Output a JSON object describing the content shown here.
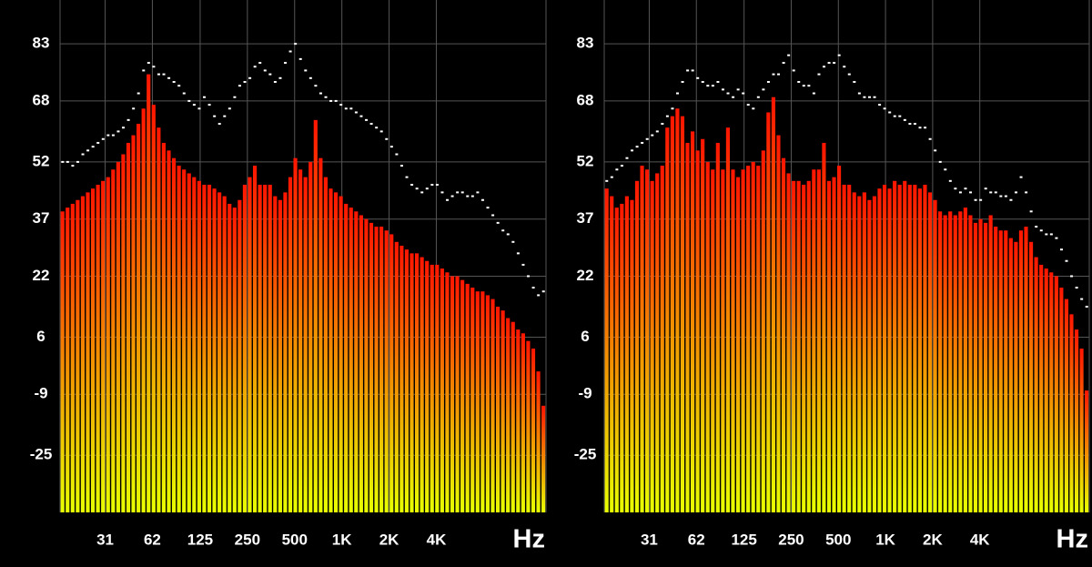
{
  "chart_data": [
    {
      "type": "bar",
      "x_label": "Hz",
      "xscale": "log",
      "xlim": [
        16,
        20000
      ],
      "xticks": [
        31,
        62,
        125,
        250,
        500,
        {
          "value": 1000,
          "label": "1K"
        },
        {
          "value": 2000,
          "label": "2K"
        },
        {
          "value": 4000,
          "label": "4K"
        }
      ],
      "ylim": [
        -40,
        94.5
      ],
      "yticks": [
        83,
        68,
        52,
        37,
        22,
        6,
        -9,
        -25
      ],
      "grid": true,
      "gradient": [
        "#ff1500",
        "#e8ff00"
      ],
      "peak_color": "#ffffff",
      "values": [
        39,
        40,
        41,
        42,
        43,
        44,
        45,
        46,
        47,
        48,
        50,
        52,
        54,
        57,
        59,
        62,
        66,
        75,
        67,
        61,
        57,
        55,
        53,
        51,
        50,
        49,
        48,
        47,
        46,
        46,
        45,
        44,
        43,
        41,
        40,
        42,
        46,
        48,
        51,
        46,
        46,
        46,
        43,
        42,
        44,
        48,
        53,
        50,
        48,
        52,
        63,
        53,
        48,
        45,
        44,
        43,
        41,
        40,
        39,
        38,
        37,
        36,
        35,
        35,
        34,
        33,
        31,
        30,
        29,
        28,
        28,
        27,
        26,
        25,
        25,
        24,
        23,
        22,
        22,
        21,
        20,
        19,
        18,
        18,
        17,
        16,
        14,
        13,
        11,
        10,
        8,
        7,
        5,
        3,
        -3,
        -12
      ],
      "peak_values": [
        52,
        52,
        51,
        52,
        54,
        55,
        56,
        57,
        58,
        59,
        59,
        60,
        61,
        63,
        66,
        70,
        76,
        78,
        77,
        75,
        75,
        74,
        73,
        72,
        70,
        68,
        67,
        66,
        69,
        67,
        64,
        62,
        64,
        66,
        69,
        72,
        73,
        74,
        77,
        78,
        76,
        75,
        73,
        74,
        78,
        81,
        83,
        79,
        76,
        74,
        72,
        70,
        69,
        68,
        68,
        67,
        66,
        66,
        65,
        64,
        63,
        62,
        61,
        60,
        58,
        56,
        54,
        51,
        48,
        46,
        45,
        44,
        45,
        46,
        46,
        44,
        42,
        43,
        44,
        44,
        43,
        43,
        44,
        42,
        40,
        38,
        36,
        34,
        33,
        31,
        28,
        25,
        22,
        19,
        17,
        18
      ]
    },
    {
      "type": "bar",
      "x_label": "Hz",
      "xscale": "log",
      "xlim": [
        16,
        20000
      ],
      "xticks": [
        31,
        62,
        125,
        250,
        500,
        {
          "value": 1000,
          "label": "1K"
        },
        {
          "value": 2000,
          "label": "2K"
        },
        {
          "value": 4000,
          "label": "4K"
        }
      ],
      "ylim": [
        -40,
        94.5
      ],
      "yticks": [
        83,
        68,
        52,
        37,
        22,
        6,
        -9,
        -25
      ],
      "grid": true,
      "gradient": [
        "#ff1500",
        "#e8ff00"
      ],
      "peak_color": "#ffffff",
      "values": [
        45,
        43,
        40,
        41,
        43,
        42,
        47,
        51,
        50,
        47,
        49,
        51,
        61,
        64,
        66,
        64,
        57,
        60,
        55,
        58,
        52,
        50,
        57,
        50,
        61,
        50,
        48,
        50,
        51,
        52,
        51,
        55,
        65,
        69,
        59,
        53,
        49,
        47,
        47,
        46,
        47,
        50,
        50,
        57,
        47,
        48,
        51,
        46,
        46,
        44,
        43,
        44,
        42,
        43,
        45,
        46,
        45,
        47,
        46,
        47,
        46,
        46,
        45,
        46,
        44,
        42,
        39,
        38,
        39,
        38,
        39,
        40,
        38,
        36,
        37,
        36,
        38,
        35,
        34,
        34,
        32,
        31,
        34,
        35,
        31,
        27,
        25,
        24,
        23,
        22,
        19,
        16,
        12,
        8,
        3,
        -8
      ],
      "peak_values": [
        47,
        48,
        50,
        51,
        53,
        55,
        56,
        57,
        58,
        59,
        60,
        62,
        64,
        66,
        70,
        73,
        76,
        76,
        74,
        73,
        72,
        72,
        73,
        71,
        70,
        69,
        71,
        70,
        67,
        66,
        69,
        71,
        73,
        75,
        75,
        78,
        80,
        76,
        73,
        72,
        72,
        70,
        75,
        77,
        78,
        78,
        80,
        77,
        75,
        73,
        70,
        69,
        69,
        69,
        67,
        66,
        65,
        64,
        64,
        63,
        62,
        62,
        61,
        61,
        58,
        55,
        52,
        50,
        47,
        45,
        44,
        45,
        44,
        42,
        42,
        45,
        44,
        44,
        43,
        43,
        42,
        44,
        48,
        44,
        39,
        35,
        34,
        33,
        33,
        32,
        29,
        26,
        22,
        19,
        16,
        14
      ]
    }
  ]
}
